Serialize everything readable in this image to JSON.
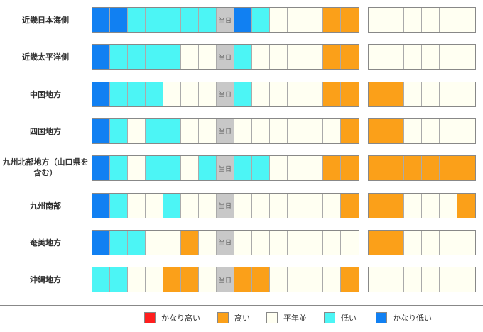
{
  "colors": {
    "very_high": "#ff1e1e",
    "high": "#fba019",
    "normal": "#fffff2",
    "low": "#4cf5f5",
    "very_low": "#1180f2",
    "today": "#c8c8c8"
  },
  "today_label": "当日",
  "regions": [
    {
      "name": "近畿日本海側",
      "past": [
        "very_low",
        "very_low",
        "low",
        "low",
        "low",
        "low",
        "low",
        "today",
        "very_low",
        "low",
        "normal",
        "normal",
        "normal",
        "high",
        "high"
      ],
      "future": [
        "normal",
        "normal",
        "normal",
        "normal",
        "normal",
        "normal"
      ]
    },
    {
      "name": "近畿太平洋側",
      "past": [
        "very_low",
        "low",
        "low",
        "low",
        "low",
        "normal",
        "normal",
        "today",
        "low",
        "normal",
        "normal",
        "normal",
        "normal",
        "high",
        "high"
      ],
      "future": [
        "normal",
        "normal",
        "normal",
        "normal",
        "normal",
        "normal"
      ]
    },
    {
      "name": "中国地方",
      "past": [
        "very_low",
        "low",
        "low",
        "low",
        "normal",
        "normal",
        "normal",
        "today",
        "low",
        "normal",
        "normal",
        "normal",
        "normal",
        "high",
        "high"
      ],
      "future": [
        "high",
        "high",
        "normal",
        "normal",
        "normal",
        "normal"
      ]
    },
    {
      "name": "四国地方",
      "past": [
        "very_low",
        "low",
        "normal",
        "low",
        "low",
        "normal",
        "normal",
        "today",
        "normal",
        "normal",
        "normal",
        "normal",
        "normal",
        "normal",
        "high"
      ],
      "future": [
        "high",
        "high",
        "normal",
        "normal",
        "normal",
        "normal"
      ]
    },
    {
      "name": "九州北部地方（山口県を含む）",
      "past": [
        "very_low",
        "low",
        "normal",
        "low",
        "low",
        "normal",
        "low",
        "today",
        "low",
        "low",
        "normal",
        "normal",
        "normal",
        "high",
        "high"
      ],
      "future": [
        "high",
        "high",
        "high",
        "high",
        "high",
        "high"
      ]
    },
    {
      "name": "九州南部",
      "past": [
        "very_low",
        "low",
        "normal",
        "normal",
        "low",
        "normal",
        "normal",
        "today",
        "normal",
        "normal",
        "normal",
        "normal",
        "normal",
        "normal",
        "high"
      ],
      "future": [
        "high",
        "high",
        "normal",
        "normal",
        "normal",
        "high"
      ]
    },
    {
      "name": "奄美地方",
      "past": [
        "very_low",
        "low",
        "low",
        "normal",
        "normal",
        "high",
        "normal",
        "today",
        "normal",
        "normal",
        "normal",
        "normal",
        "normal",
        "normal",
        "normal"
      ],
      "future": [
        "high",
        "high",
        "normal",
        "normal",
        "normal",
        "normal"
      ]
    },
    {
      "name": "沖縄地方",
      "past": [
        "low",
        "low",
        "normal",
        "normal",
        "high",
        "high",
        "normal",
        "today",
        "high",
        "high",
        "normal",
        "normal",
        "normal",
        "normal",
        "high"
      ],
      "future": [
        "normal",
        "normal",
        "normal",
        "normal",
        "normal",
        "normal"
      ]
    }
  ],
  "legend": [
    {
      "key": "very_high",
      "label": "かなり高い"
    },
    {
      "key": "high",
      "label": "高い"
    },
    {
      "key": "normal",
      "label": "平年並"
    },
    {
      "key": "low",
      "label": "低い"
    },
    {
      "key": "very_low",
      "label": "かなり低い"
    }
  ]
}
